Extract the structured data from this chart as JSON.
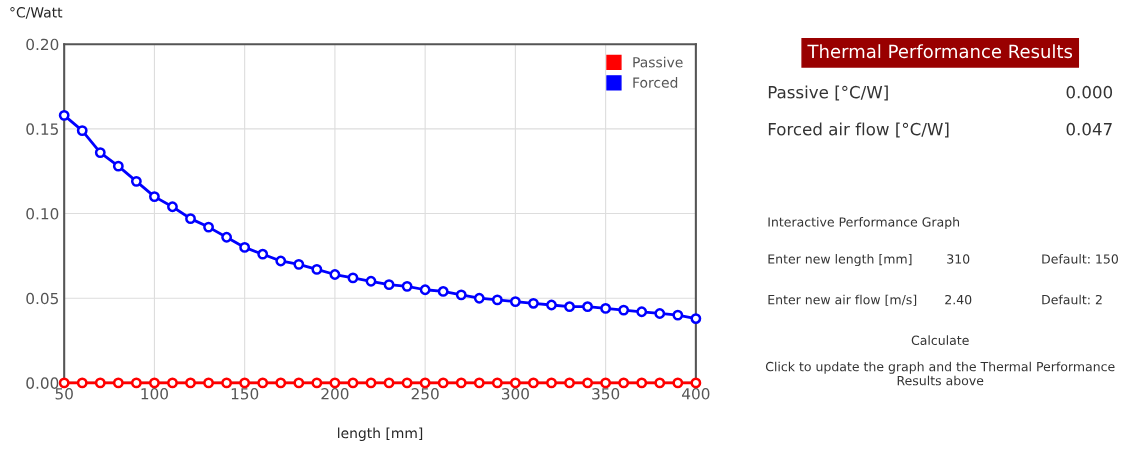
{
  "chart_data": [
    {
      "type": "line",
      "ylabel": "°C/Watt",
      "xlabel": "length [mm]",
      "x": [
        50,
        60,
        70,
        80,
        90,
        100,
        110,
        120,
        130,
        140,
        150,
        160,
        170,
        180,
        190,
        200,
        210,
        220,
        230,
        240,
        250,
        260,
        270,
        280,
        290,
        300,
        310,
        320,
        330,
        340,
        350,
        360,
        370,
        380,
        390,
        400
      ],
      "series": [
        {
          "name": "Passive",
          "color": "#ff0000",
          "values": [
            0,
            0,
            0,
            0,
            0,
            0,
            0,
            0,
            0,
            0,
            0,
            0,
            0,
            0,
            0,
            0,
            0,
            0,
            0,
            0,
            0,
            0,
            0,
            0,
            0,
            0,
            0,
            0,
            0,
            0,
            0,
            0,
            0,
            0,
            0,
            0
          ]
        },
        {
          "name": "Forced",
          "color": "#0000ff",
          "values": [
            0.158,
            0.149,
            0.136,
            0.128,
            0.119,
            0.11,
            0.104,
            0.097,
            0.092,
            0.086,
            0.08,
            0.076,
            0.072,
            0.07,
            0.067,
            0.064,
            0.062,
            0.06,
            0.058,
            0.057,
            0.055,
            0.054,
            0.052,
            0.05,
            0.049,
            0.048,
            0.047,
            0.046,
            0.045,
            0.045,
            0.044,
            0.043,
            0.042,
            0.041,
            0.04,
            0.038
          ]
        }
      ],
      "xlim": [
        50,
        400
      ],
      "xticks": [
        50,
        100,
        150,
        200,
        250,
        300,
        350,
        400
      ],
      "ylim": [
        0,
        0.2
      ],
      "yticks": [
        {
          "value": 0,
          "label": "0.00"
        },
        {
          "value": 0.05,
          "label": "0.05"
        },
        {
          "value": 0.1,
          "label": "0.10"
        },
        {
          "value": 0.15,
          "label": "0.15"
        },
        {
          "value": 0.2,
          "label": "0.20"
        }
      ],
      "grid": true,
      "legend": "top right",
      "marker": "circle",
      "line_style": "solid"
    },
    {
      "type": "other",
      "title": "Thermal Performance Results",
      "annotations": [
        "Passive [°C/W]",
        "0.000",
        "Forced air flow [°C/W]",
        "0.047",
        "Interactive Performance Graph",
        "Enter new length [mm]",
        "310",
        "Default: 150",
        "Enter new air flow [m/s]",
        "2.40",
        "Default: 2",
        "Calculate",
        "Click to update the graph and the Thermal Performance Results above"
      ]
    }
  ]
}
